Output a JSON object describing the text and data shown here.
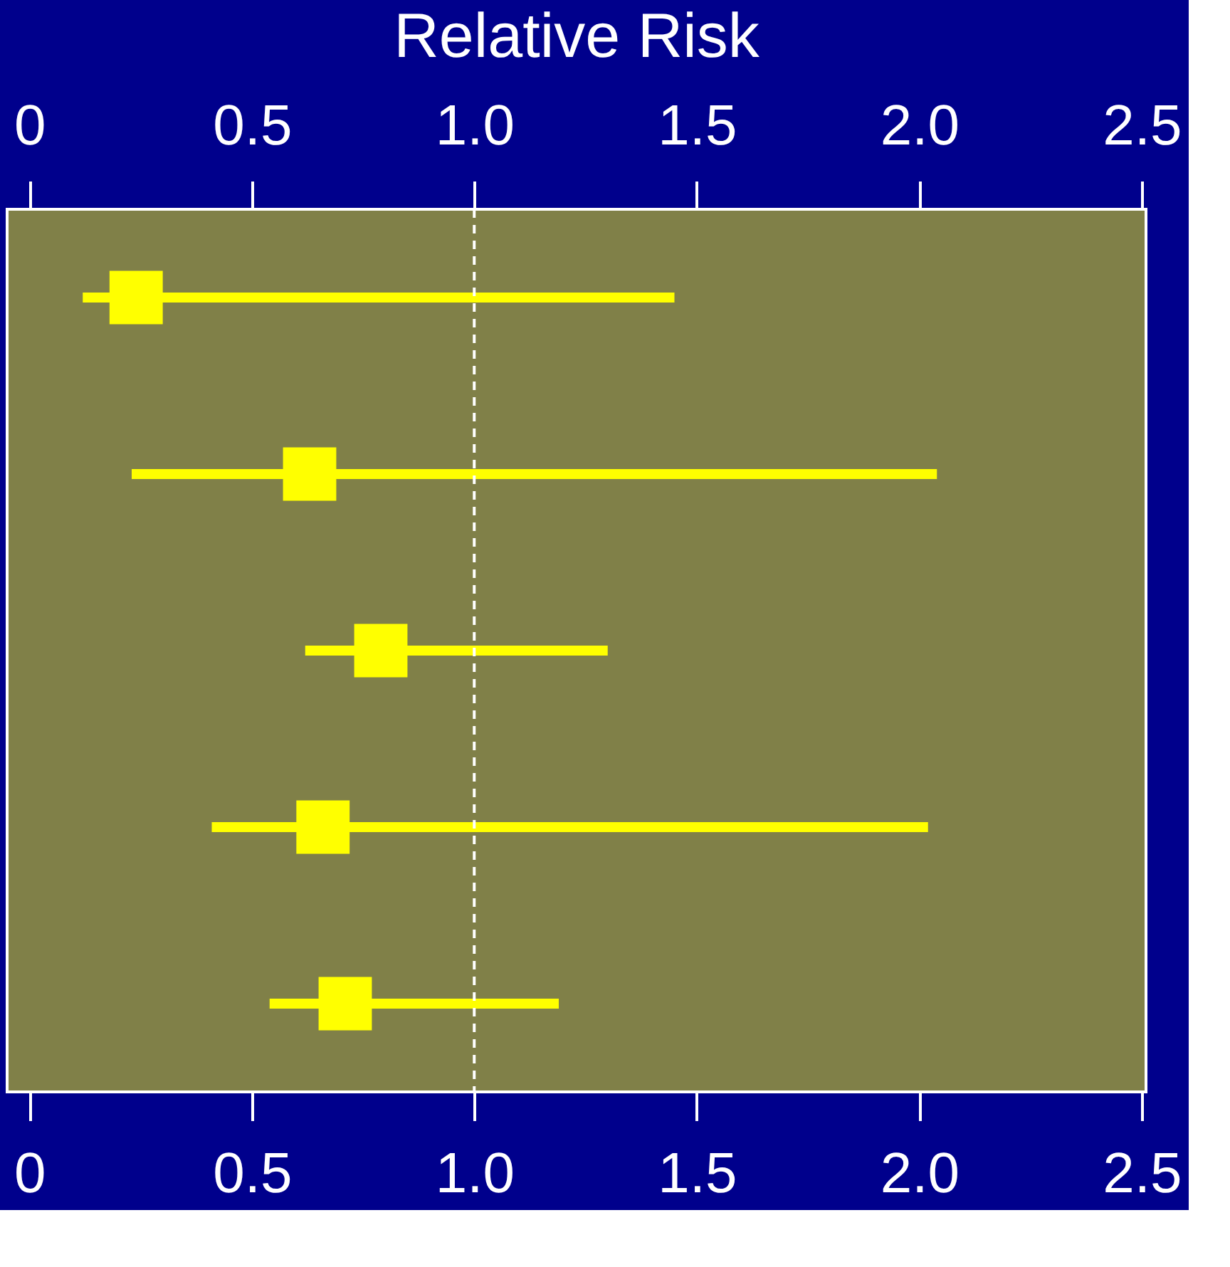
{
  "chart_data": {
    "type": "scatter",
    "orientation": "horizontal",
    "title": "Relative Risk",
    "categories": [
      null,
      null,
      null,
      null,
      null
    ],
    "values": [
      0.24,
      0.63,
      0.79,
      0.66,
      0.71
    ],
    "errors": [
      [
        0.12,
        1.45
      ],
      [
        0.23,
        2.04
      ],
      [
        0.62,
        1.3
      ],
      [
        0.41,
        2.02
      ],
      [
        0.54,
        1.19
      ]
    ],
    "color": "#ffff00",
    "marker": "square",
    "xlim": [
      -0.05,
      2.51
    ],
    "xticks": [
      0,
      0.5,
      {
        "value": 1,
        "label": "1.0"
      },
      1.5,
      {
        "value": 2,
        "label": "2.0"
      },
      2.5
    ],
    "x2lim": [
      -0.05,
      2.51
    ],
    "x2ticks": [
      0,
      0.5,
      {
        "value": 1,
        "label": "1.0"
      },
      1.5,
      {
        "value": 2,
        "label": "2.0"
      },
      2.5
    ],
    "ref_lines": [
      {
        "axis": "x",
        "value": 1,
        "color": "#ffffff",
        "line_style": "dashed"
      }
    ],
    "tick_labels": "x",
    "grid": false
  }
}
